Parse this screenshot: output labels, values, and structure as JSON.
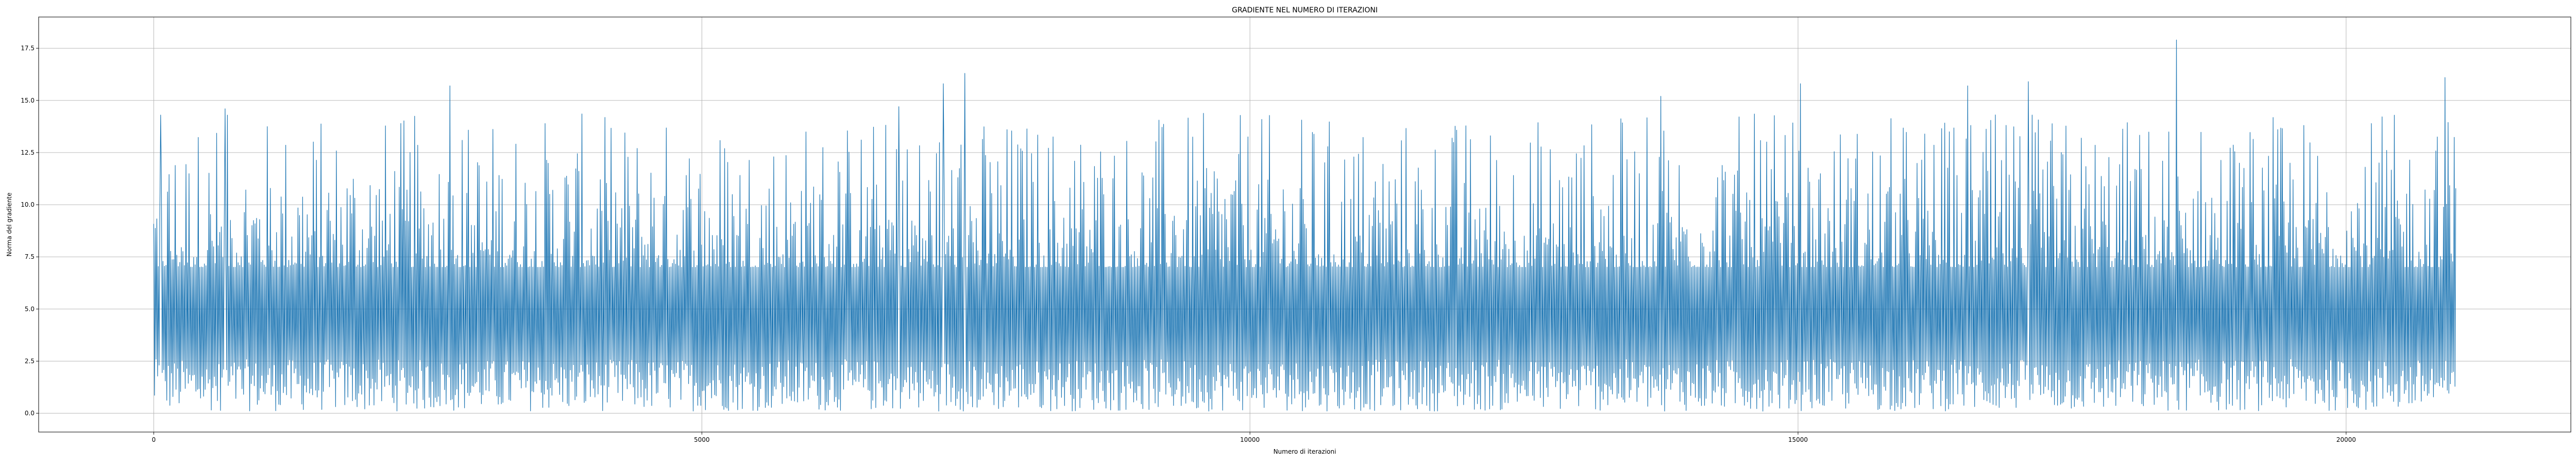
{
  "chart_data": {
    "type": "line",
    "title": "GRADIENTE NEL NUMERO DI ITERAZIONI",
    "xlabel": "Numero di iterazioni",
    "ylabel": "Norma del gradiente",
    "xlim": [
      -1050,
      22050
    ],
    "ylim": [
      -0.9,
      19.0
    ],
    "xticks": [
      0,
      5000,
      10000,
      15000,
      20000
    ],
    "yticks": [
      0.0,
      2.5,
      5.0,
      7.5,
      10.0,
      12.5,
      15.0,
      17.5
    ],
    "grid": true,
    "legend": "none",
    "series": [
      {
        "name": "Norma del gradiente",
        "color": "#1f77b4",
        "x_range": [
          0,
          21000
        ],
        "n_points": 21000,
        "typical_band": [
          2.0,
          7.0
        ],
        "min_approx": 0.1,
        "max_approx": 17.9,
        "notable_peaks": [
          {
            "x": 18450,
            "y": 17.9
          },
          {
            "x": 7400,
            "y": 16.3
          },
          {
            "x": 20900,
            "y": 16.1
          },
          {
            "x": 7200,
            "y": 15.8
          },
          {
            "x": 15020,
            "y": 15.8
          },
          {
            "x": 17100,
            "y": 15.9
          },
          {
            "x": 2700,
            "y": 15.7
          },
          {
            "x": 16550,
            "y": 15.7
          },
          {
            "x": 13750,
            "y": 15.2
          },
          {
            "x": 6800,
            "y": 14.7
          },
          {
            "x": 650,
            "y": 14.6
          },
          {
            "x": 60,
            "y": 14.3
          }
        ]
      }
    ]
  }
}
